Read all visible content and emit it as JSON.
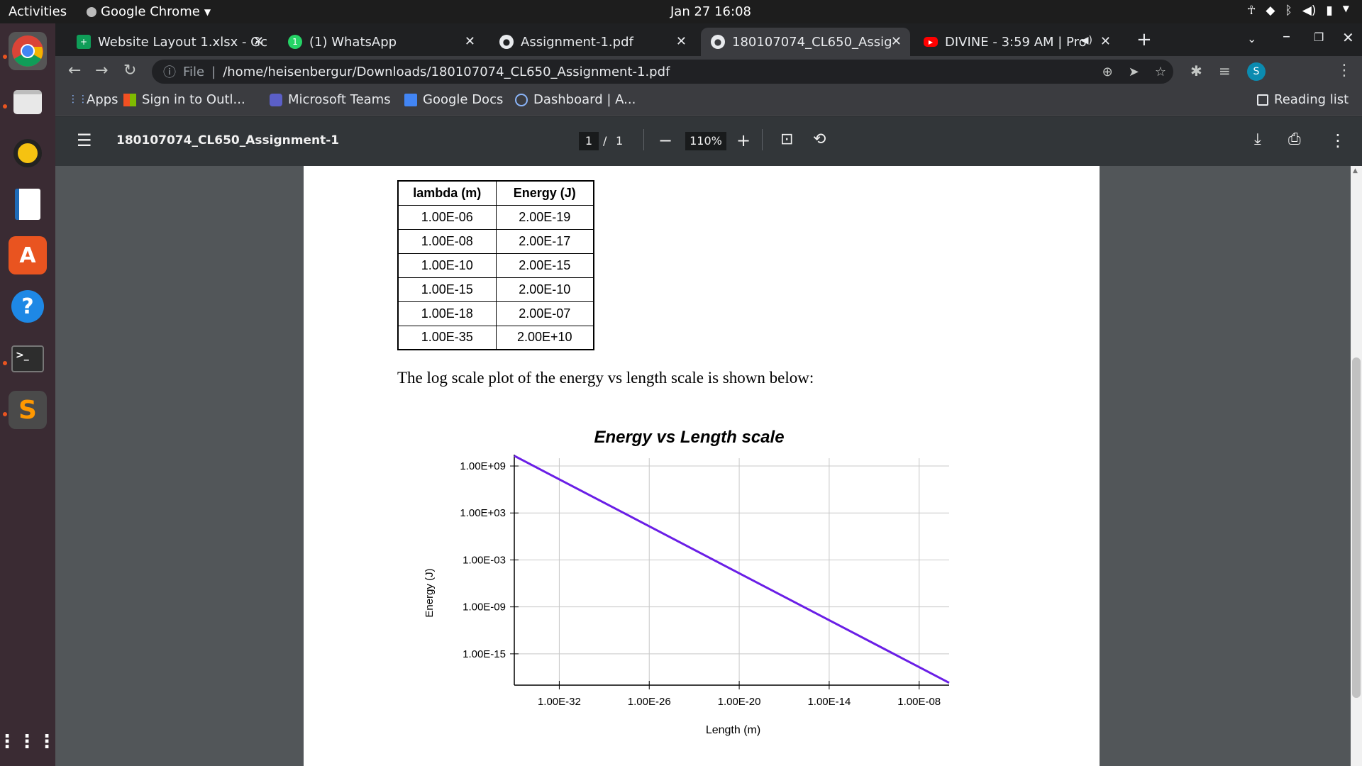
{
  "system": {
    "activities": "Activities",
    "app_name": "Google Chrome",
    "clock": "Jan 27  16:08"
  },
  "tabs": [
    {
      "label": "Website Layout 1.xlsx - Gc",
      "icon": "sheets-icon",
      "active": false
    },
    {
      "label": "(1) WhatsApp",
      "icon": "whatsapp-icon",
      "active": false
    },
    {
      "label": "Assignment-1.pdf",
      "icon": "globe-icon",
      "active": false
    },
    {
      "label": "180107074_CL650_Assig",
      "icon": "globe-icon",
      "active": true
    },
    {
      "label": "DIVINE - 3:59 AM | Pro",
      "icon": "youtube-icon",
      "active": false
    }
  ],
  "address": {
    "scheme_label": "File",
    "url": "/home/heisenbergur/Downloads/180107074_CL650_Assignment-1.pdf",
    "avatar_letter": "S"
  },
  "bookmarks": [
    {
      "label": "Apps",
      "icon": "apps-grid-icon"
    },
    {
      "label": "Sign in to Outl...",
      "icon": "microsoft-icon"
    },
    {
      "label": "Microsoft Teams",
      "icon": "teams-icon"
    },
    {
      "label": "Google Docs",
      "icon": "docs-icon"
    },
    {
      "label": "Dashboard | A...",
      "icon": "moodle-icon"
    }
  ],
  "reading_list": "Reading list",
  "pdf_toolbar": {
    "title": "180107074_CL650_Assignment-1",
    "page_current": "1",
    "page_sep": "/",
    "page_total": "1",
    "zoom": "110%"
  },
  "document": {
    "table": {
      "headers": [
        "lambda (m)",
        "Energy (J)"
      ],
      "rows": [
        [
          "1.00E-06",
          "2.00E-19"
        ],
        [
          "1.00E-08",
          "2.00E-17"
        ],
        [
          "1.00E-10",
          "2.00E-15"
        ],
        [
          "1.00E-15",
          "2.00E-10"
        ],
        [
          "1.00E-18",
          "2.00E-07"
        ],
        [
          "1.00E-35",
          "2.00E+10"
        ]
      ]
    },
    "paragraph": "The log scale plot of the energy vs length scale is shown below:"
  },
  "chart_data": {
    "type": "line",
    "title": "Energy vs Length scale",
    "xlabel": "Length (m)",
    "ylabel": "Energy (J)",
    "x_scale": "log",
    "y_scale": "log",
    "x_ticks": [
      "1.00E-32",
      "1.00E-26",
      "1.00E-20",
      "1.00E-14",
      "1.00E-08"
    ],
    "y_ticks": [
      "1.00E+09",
      "1.00E+03",
      "1.00E-03",
      "1.00E-09",
      "1.00E-15"
    ],
    "xlim": [
      1e-35,
      1e-06
    ],
    "ylim": [
      1e-19,
      10000000000.0
    ],
    "grid": true,
    "series": [
      {
        "color": "#6a1ee6",
        "x": [
          1e-35,
          1e-18,
          1e-15,
          1e-10,
          1e-08,
          1e-06
        ],
        "y": [
          20000000000.0,
          2e-07,
          2e-10,
          2e-15,
          2e-17,
          2e-19
        ]
      }
    ]
  }
}
